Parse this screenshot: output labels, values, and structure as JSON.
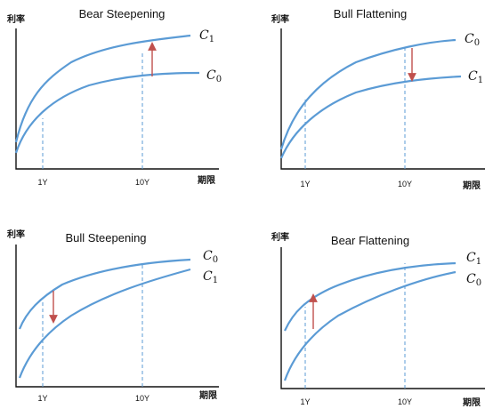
{
  "colors": {
    "curve": "#5B9BD5",
    "arrow": "#C0504D",
    "axis": "#111111"
  },
  "panels": [
    {
      "title": "Bear Steepening",
      "y_axis_label": "利率",
      "x_axis_label": "期限",
      "ticks": [
        "1Y",
        "10Y"
      ],
      "upper_curve": {
        "letter": "C",
        "subscript": "1"
      },
      "lower_curve": {
        "letter": "C",
        "subscript": "0"
      },
      "arrow_direction": "up",
      "arrow_at": "10Y"
    },
    {
      "title": "Bull Flattening",
      "y_axis_label": "利率",
      "x_axis_label": "期限",
      "ticks": [
        "1Y",
        "10Y"
      ],
      "upper_curve": {
        "letter": "C",
        "subscript": "0"
      },
      "lower_curve": {
        "letter": "C",
        "subscript": "1"
      },
      "arrow_direction": "down",
      "arrow_at": "10Y"
    },
    {
      "title": "Bull Steepening",
      "y_axis_label": "利率",
      "x_axis_label": "期限",
      "ticks": [
        "1Y",
        "10Y"
      ],
      "upper_curve": {
        "letter": "C",
        "subscript": "0"
      },
      "lower_curve": {
        "letter": "C",
        "subscript": "1"
      },
      "arrow_direction": "down",
      "arrow_at": "1Y"
    },
    {
      "title": "Bear Flattening",
      "y_axis_label": "利率",
      "x_axis_label": "期限",
      "ticks": [
        "1Y",
        "10Y"
      ],
      "upper_curve": {
        "letter": "C",
        "subscript": "1"
      },
      "lower_curve": {
        "letter": "C",
        "subscript": "0"
      },
      "arrow_direction": "up",
      "arrow_at": "1Y"
    }
  ]
}
